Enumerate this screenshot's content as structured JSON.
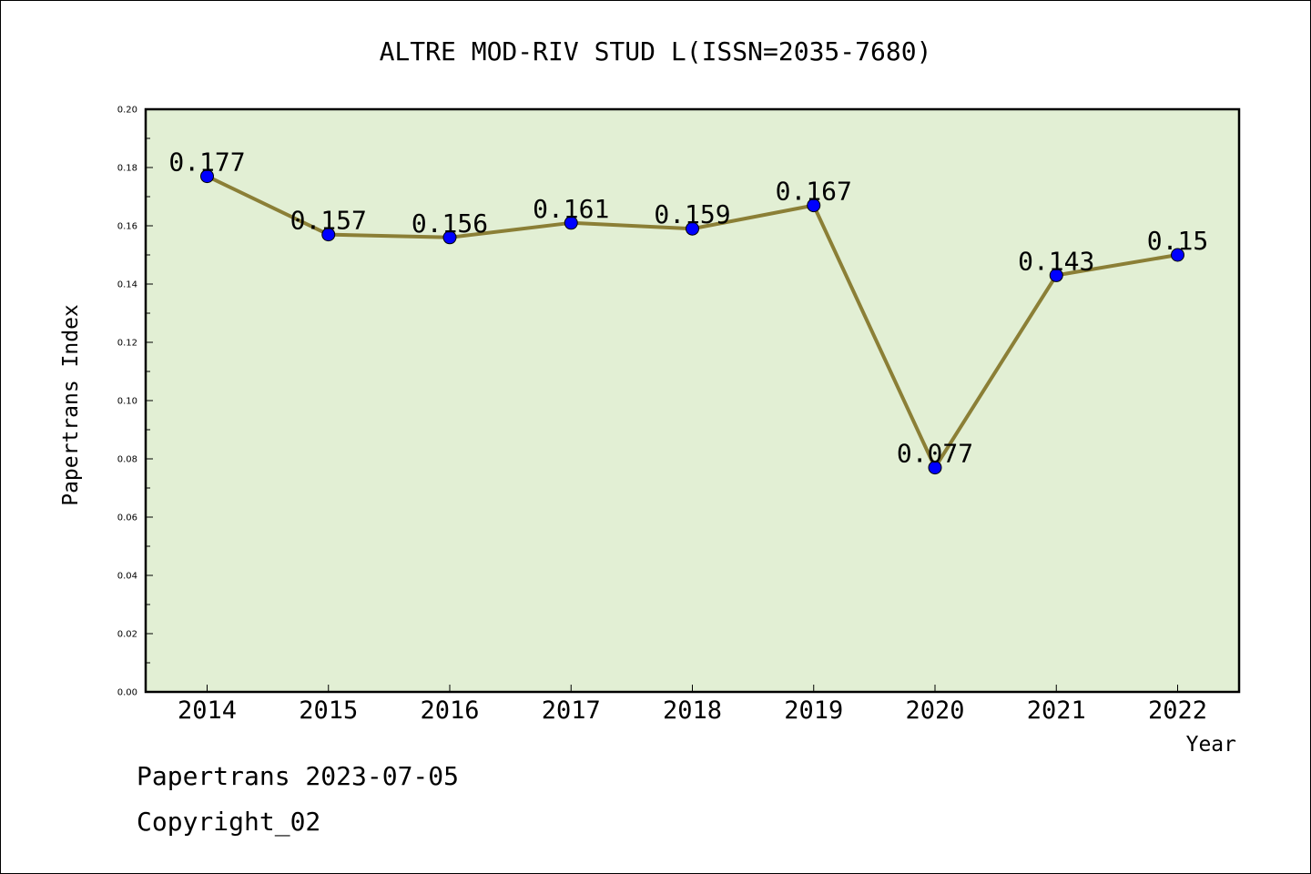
{
  "chart_data": {
    "type": "line",
    "title": "ALTRE MOD-RIV STUD L(ISSN=2035-7680)",
    "xlabel": "Year",
    "ylabel": "Papertrans Index",
    "categories": [
      "2014",
      "2015",
      "2016",
      "2017",
      "2018",
      "2019",
      "2020",
      "2021",
      "2022"
    ],
    "series": [
      {
        "values": [
          0.177,
          0.157,
          0.156,
          0.161,
          0.159,
          0.167,
          0.077,
          0.143,
          0.15
        ],
        "labels": [
          "0.177",
          "0.157",
          "0.156",
          "0.161",
          "0.159",
          "0.167",
          "0.077",
          "0.143",
          "0.15"
        ]
      }
    ],
    "ylim": [
      0.0,
      0.2
    ],
    "yticks": [
      "0.00",
      "0.02",
      "0.04",
      "0.06",
      "0.08",
      "0.10",
      "0.12",
      "0.14",
      "0.16",
      "0.18",
      "0.20"
    ],
    "grid": false,
    "legend": "none",
    "colors": {
      "plot_background": "#e2efd4",
      "line": "#8b7f36",
      "marker": "#0000ff"
    }
  },
  "footer": {
    "line1": "Papertrans 2023-07-05",
    "line2": "Copyright_02"
  }
}
